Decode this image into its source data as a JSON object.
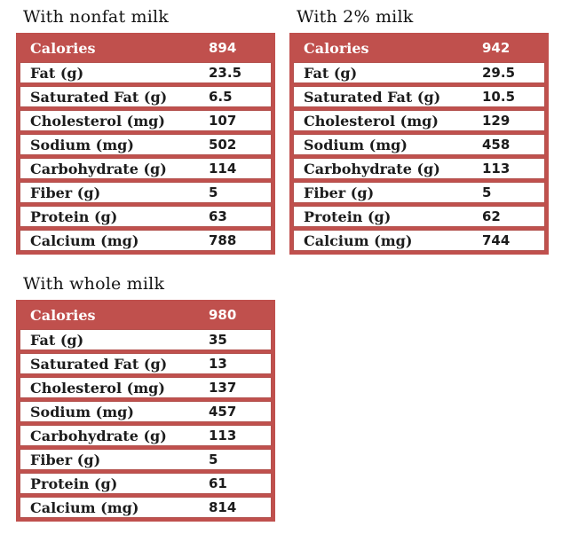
{
  "colors": {
    "accent_red": "#c0504d",
    "row_border_red": "#b3524e",
    "header_text": "#ffffff",
    "body_text": "#1c1c1c",
    "page_background": "#ffffff"
  },
  "tables": [
    {
      "title": "With nonfat milk",
      "header": {
        "label": "Calories",
        "value": "894"
      },
      "rows": [
        {
          "label": "Fat (g)",
          "value": "23.5"
        },
        {
          "label": "Saturated Fat (g)",
          "value": "6.5"
        },
        {
          "label": "Cholesterol (mg)",
          "value": "107"
        },
        {
          "label": "Sodium (mg)",
          "value": "502"
        },
        {
          "label": "Carbohydrate (g)",
          "value": "114"
        },
        {
          "label": "Fiber (g)",
          "value": "5"
        },
        {
          "label": "Protein (g)",
          "value": "63"
        },
        {
          "label": "Calcium (mg)",
          "value": "788"
        }
      ]
    },
    {
      "title": "With 2% milk",
      "header": {
        "label": "Calories",
        "value": "942"
      },
      "rows": [
        {
          "label": "Fat (g)",
          "value": "29.5"
        },
        {
          "label": "Saturated Fat (g)",
          "value": "10.5"
        },
        {
          "label": "Cholesterol (mg)",
          "value": "129"
        },
        {
          "label": "Sodium (mg)",
          "value": "458"
        },
        {
          "label": "Carbohydrate (g)",
          "value": "113"
        },
        {
          "label": "Fiber (g)",
          "value": "5"
        },
        {
          "label": "Protein (g)",
          "value": "62"
        },
        {
          "label": "Calcium (mg)",
          "value": "744"
        }
      ]
    },
    {
      "title": "With whole milk",
      "header": {
        "label": "Calories",
        "value": "980"
      },
      "rows": [
        {
          "label": "Fat (g)",
          "value": "35"
        },
        {
          "label": "Saturated Fat (g)",
          "value": "13"
        },
        {
          "label": "Cholesterol (mg)",
          "value": "137"
        },
        {
          "label": "Sodium (mg)",
          "value": "457"
        },
        {
          "label": "Carbohydrate (g)",
          "value": "113"
        },
        {
          "label": "Fiber (g)",
          "value": "5"
        },
        {
          "label": "Protein (g)",
          "value": "61"
        },
        {
          "label": "Calcium (mg)",
          "value": "814"
        }
      ]
    }
  ]
}
